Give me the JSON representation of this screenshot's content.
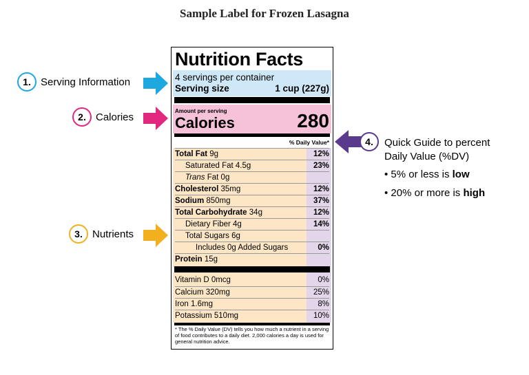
{
  "title": "Sample Label for Frozen Lasagna",
  "label": {
    "heading": "Nutrition Facts",
    "servings_per_container": "4 servings per container",
    "serving_size_label": "Serving size",
    "serving_size_value": "1 cup (227g)",
    "amount_per_serving": "Amount per serving",
    "calories_label": "Calories",
    "calories_value": "280",
    "daily_value_header": "% Daily Value*",
    "nutrients": [
      {
        "bold": "Total Fat",
        "amount": " 9g",
        "dv": "12%"
      },
      {
        "name": "Saturated Fat 4.5g",
        "dv": "23%"
      },
      {
        "italic": "Trans",
        "amount": " Fat 0g",
        "dv": ""
      },
      {
        "bold": "Cholesterol",
        "amount": " 35mg",
        "dv": "12%"
      },
      {
        "bold": "Sodium",
        "amount": " 850mg",
        "dv": "37%"
      },
      {
        "bold": "Total Carbohydrate",
        "amount": " 34g",
        "dv": "12%"
      },
      {
        "name": "Dietary Fiber 4g",
        "dv": "14%"
      },
      {
        "name": "Total Sugars 6g",
        "dv": ""
      },
      {
        "name": "Includes 0g Added Sugars",
        "dv": "0%"
      },
      {
        "bold": "Protein",
        "amount": " 15g",
        "dv": ""
      }
    ],
    "vitamins": [
      {
        "name": "Vitamin D 0mcg",
        "dv": "0%"
      },
      {
        "name": "Calcium 320mg",
        "dv": "25%"
      },
      {
        "name": "Iron 1.6mg",
        "dv": "8%"
      },
      {
        "name": "Potassium 510mg",
        "dv": "10%"
      }
    ],
    "footnote": "* The % Daily Value (DV) tells you how much a nutrient in a serving of food contributes to a daily diet. 2,000 calories a day is used for general nutrition advice."
  },
  "callouts": [
    {
      "number": "1.",
      "text": "Serving Information",
      "color": "#1ea8e0"
    },
    {
      "number": "2.",
      "text": "Calories",
      "color": "#e0287e"
    },
    {
      "number": "3.",
      "text": "Nutrients",
      "color": "#f2b01e"
    },
    {
      "number": "4.",
      "text": "Quick Guide to percent",
      "text2": "Daily Value (%DV)",
      "color": "#5a3a8c"
    }
  ],
  "guide": {
    "bullet1_prefix": "• 5% or less is ",
    "bullet1_bold": "low",
    "bullet2_prefix": "• 20% or more is ",
    "bullet2_bold": "high"
  }
}
